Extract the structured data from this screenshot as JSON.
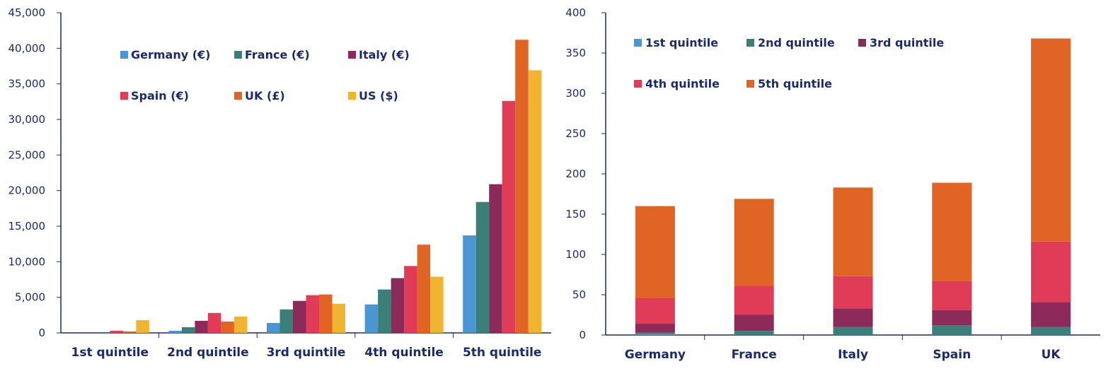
{
  "chart_data": [
    {
      "type": "bar",
      "categories": [
        "1st quintile",
        "2nd quintile",
        "3rd quintile",
        "4th quintile",
        "5th quintile"
      ],
      "series": [
        {
          "name": "Germany (€)",
          "color": "#4a96d2",
          "values": [
            0,
            300,
            1400,
            4000,
            13700
          ]
        },
        {
          "name": "France (€)",
          "color": "#3a8078",
          "values": [
            0,
            800,
            3300,
            6100,
            18400
          ]
        },
        {
          "name": "Italy (€)",
          "color": "#8c2a5a",
          "values": [
            0,
            1700,
            4500,
            7700,
            20900
          ]
        },
        {
          "name": "Spain (€)",
          "color": "#e03c58",
          "values": [
            300,
            2800,
            5300,
            9400,
            32600
          ]
        },
        {
          "name": "UK (£)",
          "color": "#e06424",
          "values": [
            200,
            1600,
            5400,
            12400,
            41200
          ]
        },
        {
          "name": "US ($)",
          "color": "#f0b432",
          "values": [
            1800,
            2300,
            4100,
            7900,
            36900
          ]
        }
      ],
      "ylim": [
        0,
        45000
      ],
      "yticks": [
        "0",
        "5,000",
        "10,000",
        "15,000",
        "20,000",
        "25,000",
        "30,000",
        "35,000",
        "40,000",
        "45,000"
      ],
      "grid": false,
      "legend": "top-left"
    },
    {
      "type": "bar",
      "stacked": true,
      "categories": [
        "Germany",
        "France",
        "Italy",
        "Spain",
        "UK"
      ],
      "series": [
        {
          "name": "1st quintile",
          "color": "#4a96d2",
          "values": [
            1,
            0,
            0,
            0,
            0
          ]
        },
        {
          "name": "2nd quintile",
          "color": "#3a8078",
          "values": [
            2,
            5,
            10,
            12,
            10
          ]
        },
        {
          "name": "3rd quintile",
          "color": "#8c2a5a",
          "values": [
            11,
            20,
            23,
            19,
            31
          ]
        },
        {
          "name": "4th quintile",
          "color": "#e03c58",
          "values": [
            32,
            36,
            40,
            36,
            75
          ]
        },
        {
          "name": "5th quintile",
          "color": "#e06424",
          "values": [
            114,
            108,
            110,
            122,
            252
          ]
        }
      ],
      "ylim": [
        0,
        400
      ],
      "yticks": [
        "0",
        "50",
        "100",
        "150",
        "200",
        "250",
        "300",
        "350",
        "400"
      ],
      "grid": false,
      "legend": "top-left"
    }
  ]
}
